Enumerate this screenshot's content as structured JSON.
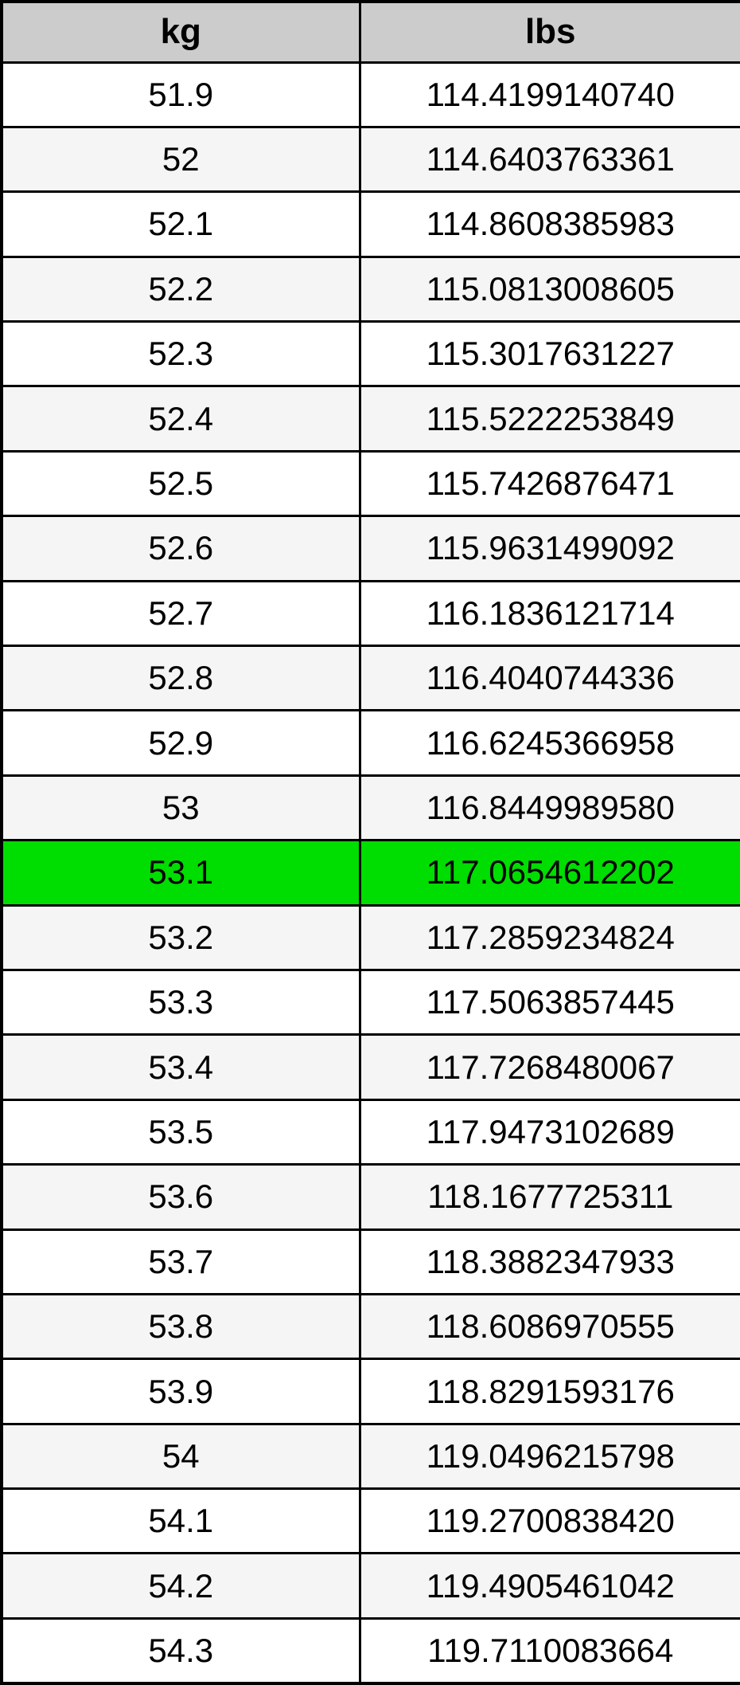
{
  "colors": {
    "border": "#000000",
    "header_bg": "#cccccc",
    "row_bg": "#ffffff",
    "row_alt_bg": "#f5f5f5",
    "highlight_bg": "#00dd00",
    "text": "#000000"
  },
  "chart_data": {
    "type": "table",
    "columns": [
      "kg",
      "lbs"
    ],
    "highlighted_kg": "53.1",
    "rows": [
      {
        "kg": "51.9",
        "lbs": "114.4199140740",
        "highlighted": false
      },
      {
        "kg": "52",
        "lbs": "114.6403763361",
        "highlighted": false
      },
      {
        "kg": "52.1",
        "lbs": "114.8608385983",
        "highlighted": false
      },
      {
        "kg": "52.2",
        "lbs": "115.0813008605",
        "highlighted": false
      },
      {
        "kg": "52.3",
        "lbs": "115.3017631227",
        "highlighted": false
      },
      {
        "kg": "52.4",
        "lbs": "115.5222253849",
        "highlighted": false
      },
      {
        "kg": "52.5",
        "lbs": "115.7426876471",
        "highlighted": false
      },
      {
        "kg": "52.6",
        "lbs": "115.9631499092",
        "highlighted": false
      },
      {
        "kg": "52.7",
        "lbs": "116.1836121714",
        "highlighted": false
      },
      {
        "kg": "52.8",
        "lbs": "116.4040744336",
        "highlighted": false
      },
      {
        "kg": "52.9",
        "lbs": "116.6245366958",
        "highlighted": false
      },
      {
        "kg": "53",
        "lbs": "116.8449989580",
        "highlighted": false
      },
      {
        "kg": "53.1",
        "lbs": "117.0654612202",
        "highlighted": true
      },
      {
        "kg": "53.2",
        "lbs": "117.2859234824",
        "highlighted": false
      },
      {
        "kg": "53.3",
        "lbs": "117.5063857445",
        "highlighted": false
      },
      {
        "kg": "53.4",
        "lbs": "117.7268480067",
        "highlighted": false
      },
      {
        "kg": "53.5",
        "lbs": "117.9473102689",
        "highlighted": false
      },
      {
        "kg": "53.6",
        "lbs": "118.1677725311",
        "highlighted": false
      },
      {
        "kg": "53.7",
        "lbs": "118.3882347933",
        "highlighted": false
      },
      {
        "kg": "53.8",
        "lbs": "118.6086970555",
        "highlighted": false
      },
      {
        "kg": "53.9",
        "lbs": "118.8291593176",
        "highlighted": false
      },
      {
        "kg": "54",
        "lbs": "119.0496215798",
        "highlighted": false
      },
      {
        "kg": "54.1",
        "lbs": "119.2700838420",
        "highlighted": false
      },
      {
        "kg": "54.2",
        "lbs": "119.4905461042",
        "highlighted": false
      },
      {
        "kg": "54.3",
        "lbs": "119.7110083664",
        "highlighted": false
      }
    ]
  }
}
